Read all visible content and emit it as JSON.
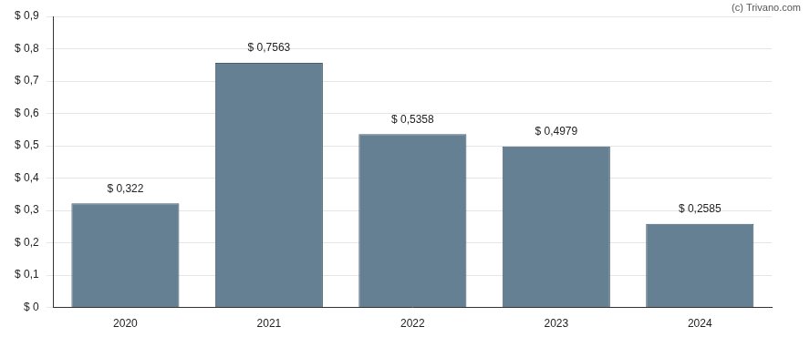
{
  "chart_data": {
    "type": "bar",
    "annotation": "(c) Trivano.com",
    "categories": [
      "2020",
      "2021",
      "2022",
      "2023",
      "2024"
    ],
    "values": [
      0.322,
      0.7563,
      0.5358,
      0.4979,
      0.2585
    ],
    "value_labels": [
      "$ 0,322",
      "$ 0,7563",
      "$ 0,5358",
      "$ 0,4979",
      "$ 0,2585"
    ],
    "data_labels": true,
    "color": "#657f93",
    "ylim": [
      0,
      0.9
    ],
    "yticks": [
      {
        "value": 0,
        "label": "$ 0"
      },
      {
        "value": 0.1,
        "label": "$ 0,1"
      },
      {
        "value": 0.2,
        "label": "$ 0,2"
      },
      {
        "value": 0.3,
        "label": "$ 0,3"
      },
      {
        "value": 0.4,
        "label": "$ 0,4"
      },
      {
        "value": 0.5,
        "label": "$ 0,5"
      },
      {
        "value": 0.6,
        "label": "$ 0,6"
      },
      {
        "value": 0.7,
        "label": "$ 0,7"
      },
      {
        "value": 0.8,
        "label": "$ 0,8"
      },
      {
        "value": 0.9,
        "label": "$ 0,9"
      }
    ],
    "grid": true
  }
}
